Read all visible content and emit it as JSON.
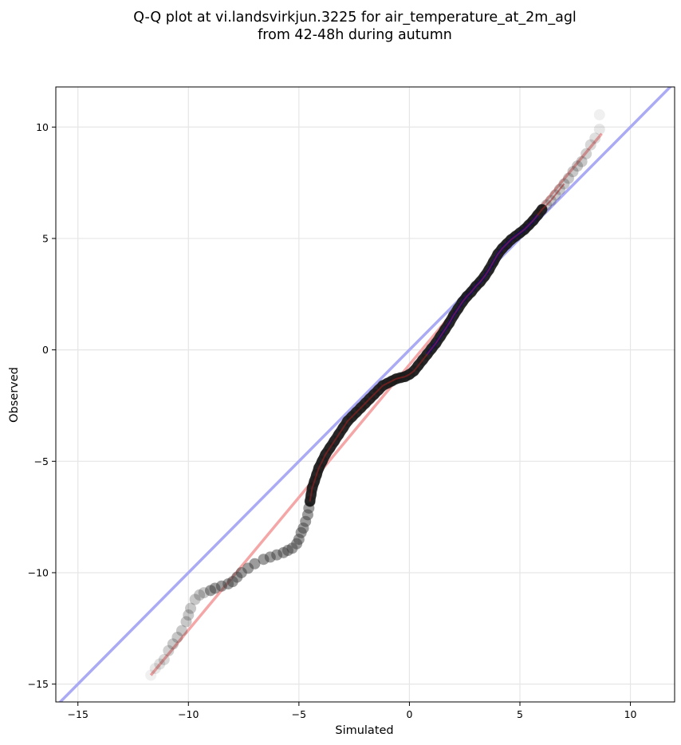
{
  "chart_data": {
    "type": "scatter",
    "title_line1": "Q-Q plot at vi.landsvirkjun.3225 for air_temperature_at_2m_agl",
    "title_line2": "from 42-48h during autumn",
    "xlabel": "Simulated",
    "ylabel": "Observed",
    "xlim": [
      -16,
      12
    ],
    "ylim": [
      -15.8,
      11.8
    ],
    "xticks": [
      -15,
      -10,
      -5,
      0,
      5,
      10
    ],
    "xtick_labels": [
      "−15",
      "−10",
      "−5",
      "0",
      "5",
      "10"
    ],
    "yticks": [
      -15,
      -10,
      -5,
      0,
      5,
      10
    ],
    "ytick_labels": [
      "−15",
      "−10",
      "−5",
      "0",
      "5",
      "10"
    ],
    "grid": true,
    "colors": {
      "points": "#3a3a3a",
      "identity_line": "#aaaaf5",
      "fit_line": "#f5a6a6",
      "center_band": "#0000aa",
      "center_fit": "#aa2222"
    },
    "identity_line": {
      "x": [
        -16,
        12
      ],
      "y": [
        -16,
        12
      ]
    },
    "fit_line": {
      "x": [
        -11.7,
        8.7
      ],
      "y": [
        -14.6,
        9.7
      ]
    },
    "series": [
      {
        "points": [
          [
            -11.7,
            -14.6
          ],
          [
            -11.5,
            -14.3
          ],
          [
            -11.3,
            -14.1
          ],
          [
            -11.1,
            -13.9
          ],
          [
            -10.9,
            -13.5
          ],
          [
            -10.7,
            -13.2
          ],
          [
            -10.5,
            -12.9
          ],
          [
            -10.3,
            -12.6
          ],
          [
            -10.1,
            -12.2
          ],
          [
            -10.0,
            -11.9
          ],
          [
            -9.9,
            -11.6
          ],
          [
            -9.7,
            -11.2
          ],
          [
            -9.5,
            -11.0
          ],
          [
            -9.3,
            -10.9
          ],
          [
            -9.0,
            -10.8
          ],
          [
            -8.8,
            -10.7
          ],
          [
            -8.5,
            -10.6
          ],
          [
            -8.2,
            -10.5
          ],
          [
            -8.0,
            -10.4
          ],
          [
            -7.8,
            -10.2
          ],
          [
            -7.6,
            -10.0
          ],
          [
            -7.3,
            -9.8
          ],
          [
            -7.0,
            -9.6
          ],
          [
            -6.6,
            -9.4
          ],
          [
            -6.3,
            -9.3
          ],
          [
            -6.0,
            -9.2
          ],
          [
            -5.7,
            -9.1
          ],
          [
            -5.5,
            -9.0
          ],
          [
            -5.3,
            -8.9
          ],
          [
            -5.1,
            -8.7
          ],
          [
            -5.0,
            -8.5
          ],
          [
            -4.9,
            -8.2
          ],
          [
            -4.8,
            -8.0
          ],
          [
            -4.7,
            -7.7
          ],
          [
            -4.6,
            -7.4
          ],
          [
            -4.55,
            -7.1
          ],
          [
            -4.5,
            -6.8
          ],
          [
            -4.45,
            -6.5
          ],
          [
            -4.4,
            -6.2
          ],
          [
            -4.3,
            -5.9
          ],
          [
            -4.2,
            -5.6
          ],
          [
            -4.1,
            -5.3
          ],
          [
            -3.95,
            -5.0
          ],
          [
            -3.8,
            -4.7
          ],
          [
            -3.6,
            -4.4
          ],
          [
            -3.4,
            -4.1
          ],
          [
            -3.2,
            -3.8
          ],
          [
            -3.0,
            -3.5
          ],
          [
            -2.8,
            -3.2
          ],
          [
            -2.6,
            -3.0
          ],
          [
            -2.4,
            -2.8
          ],
          [
            -2.2,
            -2.6
          ],
          [
            -2.0,
            -2.4
          ],
          [
            -1.8,
            -2.2
          ],
          [
            -1.6,
            -2.0
          ],
          [
            -1.4,
            -1.8
          ],
          [
            -1.2,
            -1.6
          ],
          [
            -1.0,
            -1.5
          ],
          [
            -0.8,
            -1.4
          ],
          [
            -0.6,
            -1.3
          ],
          [
            -0.4,
            -1.25
          ],
          [
            -0.2,
            -1.2
          ],
          [
            0.0,
            -1.1
          ],
          [
            0.2,
            -0.95
          ],
          [
            0.4,
            -0.7
          ],
          [
            0.6,
            -0.45
          ],
          [
            0.8,
            -0.2
          ],
          [
            1.0,
            0.05
          ],
          [
            1.2,
            0.3
          ],
          [
            1.4,
            0.6
          ],
          [
            1.6,
            0.9
          ],
          [
            1.8,
            1.2
          ],
          [
            2.0,
            1.55
          ],
          [
            2.2,
            1.85
          ],
          [
            2.4,
            2.15
          ],
          [
            2.6,
            2.4
          ],
          [
            2.8,
            2.6
          ],
          [
            3.0,
            2.85
          ],
          [
            3.2,
            3.05
          ],
          [
            3.4,
            3.3
          ],
          [
            3.6,
            3.6
          ],
          [
            3.8,
            3.95
          ],
          [
            4.0,
            4.3
          ],
          [
            4.2,
            4.55
          ],
          [
            4.4,
            4.75
          ],
          [
            4.6,
            4.95
          ],
          [
            4.8,
            5.1
          ],
          [
            5.0,
            5.25
          ],
          [
            5.2,
            5.4
          ],
          [
            5.4,
            5.6
          ],
          [
            5.6,
            5.8
          ],
          [
            5.8,
            6.05
          ],
          [
            6.0,
            6.3
          ],
          [
            6.2,
            6.5
          ],
          [
            6.4,
            6.7
          ],
          [
            6.6,
            6.95
          ],
          [
            6.8,
            7.2
          ],
          [
            7.0,
            7.45
          ],
          [
            7.2,
            7.7
          ],
          [
            7.4,
            8.0
          ],
          [
            7.6,
            8.25
          ],
          [
            7.8,
            8.45
          ],
          [
            8.0,
            8.8
          ],
          [
            8.2,
            9.2
          ],
          [
            8.4,
            9.5
          ],
          [
            8.6,
            9.9
          ],
          [
            8.6,
            10.55
          ]
        ]
      }
    ]
  }
}
